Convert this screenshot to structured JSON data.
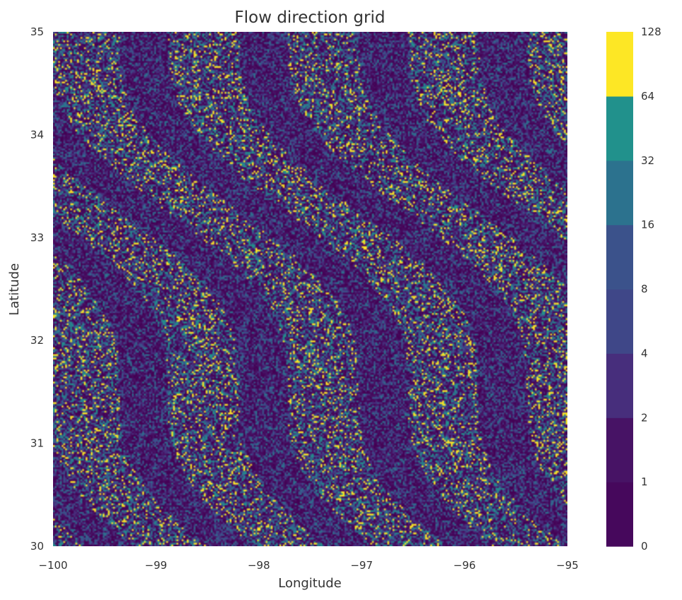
{
  "chart_data": {
    "type": "heatmap",
    "title": "Flow direction grid",
    "xlabel": "Longitude",
    "ylabel": "Latitude",
    "xlim": [
      -100,
      -95
    ],
    "ylim": [
      30,
      35
    ],
    "x_ticks": [
      "−100",
      "−99",
      "−98",
      "−97",
      "−96",
      "−95"
    ],
    "y_ticks": [
      "30",
      "31",
      "32",
      "33",
      "34",
      "35"
    ],
    "grid": false,
    "colorbar": {
      "levels": [
        "0",
        "1",
        "2",
        "4",
        "8",
        "16",
        "32",
        "64",
        "128"
      ],
      "colors": [
        "#440154",
        "#46085c",
        "#471365",
        "#472e7c",
        "#3f4788",
        "#3b528b",
        "#2c728e",
        "#21918c",
        "#fde725"
      ]
    },
    "cell_value_weights": {
      "1": 0.14,
      "2": 0.14,
      "4": 0.14,
      "8": 0.14,
      "16": 0.13,
      "32": 0.11,
      "64": 0.1,
      "128": 0.1
    },
    "cell_colors": {
      "1": "#440154",
      "2": "#46085c",
      "4": "#471365",
      "8": "#472e7c",
      "16": "#3b528b",
      "32": "#2c728e",
      "64": "#21918c",
      "128": "#fde725"
    }
  }
}
